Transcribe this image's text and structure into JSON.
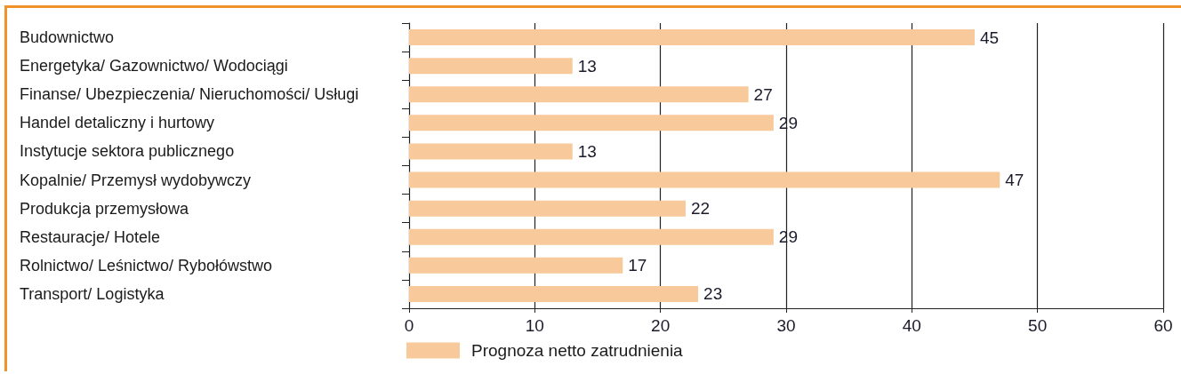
{
  "chart_data": {
    "type": "bar",
    "orientation": "horizontal",
    "categories": [
      "Budownictwo",
      "Energetyka/ Gazownictwo/ Wodociągi",
      "Finanse/ Ubezpieczenia/ Nieruchomości/ Usługi",
      "Handel detaliczny i hurtowy",
      "Instytucje sektora publicznego",
      "Kopalnie/ Przemysł wydobywczy",
      "Produkcja przemysłowa",
      "Restauracje/ Hotele",
      "Rolnictwo/ Leśnictwo/ Rybołówstwo",
      "Transport/ Logistyka"
    ],
    "series": [
      {
        "name": "Prognoza netto zatrudnienia",
        "color": "#f8c99a",
        "values": [
          45,
          13,
          27,
          29,
          13,
          47,
          22,
          29,
          17,
          23
        ]
      }
    ],
    "xlim": [
      0,
      60
    ],
    "xticks": [
      0,
      10,
      20,
      30,
      40,
      50,
      60
    ],
    "grid": "x",
    "legend": "bottom left",
    "data_labels": true
  }
}
